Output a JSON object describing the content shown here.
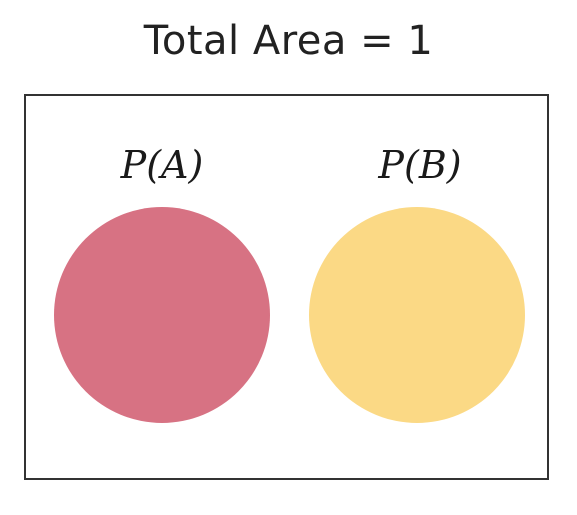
{
  "title": "Total Area = 1",
  "events": [
    {
      "label": "P(A)",
      "color": "#d77283"
    },
    {
      "label": "P(B)",
      "color": "#fbd985"
    }
  ],
  "frame_border_color": "#333333"
}
